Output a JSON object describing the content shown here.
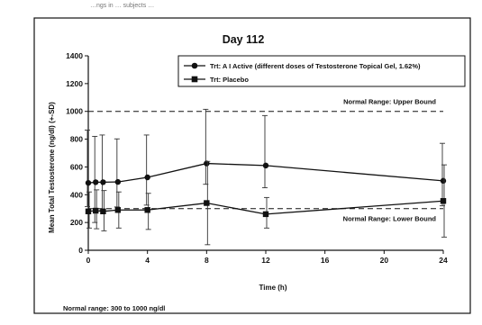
{
  "chart_data": {
    "type": "line",
    "title": "Day 112",
    "xlabel": "Time (h)",
    "ylabel": "Mean Total Testosterone (ng/dl) (+-SD)",
    "xlim": [
      0,
      24
    ],
    "ylim": [
      0,
      1400
    ],
    "x_ticks": [
      0,
      4,
      8,
      12,
      16,
      20,
      24
    ],
    "y_ticks": [
      0,
      200,
      400,
      600,
      800,
      1000,
      1200,
      1400
    ],
    "x_tick_labels": [
      "0",
      "4",
      "8",
      "12",
      "16",
      "20",
      "24"
    ],
    "y_tick_labels": [
      "0",
      "200",
      "400",
      "600",
      "800",
      "1000",
      "1200",
      "1400"
    ],
    "grid": false,
    "legend_position": "top-right",
    "series": [
      {
        "name": "Trt: A I Active (different doses of Testosterone Topical Gel, 1.62%)",
        "marker": "circle",
        "x": [
          0,
          0.5,
          1,
          2,
          4,
          8,
          12,
          24
        ],
        "y": [
          485,
          490,
          490,
          492,
          525,
          625,
          610,
          500
        ],
        "err_low": [
          170,
          290,
          200,
          180,
          200,
          150,
          160,
          180
        ],
        "err_high": [
          380,
          330,
          340,
          310,
          305,
          390,
          360,
          270
        ]
      },
      {
        "name": "Trt: Placebo",
        "marker": "square",
        "x": [
          0,
          0.5,
          1,
          2,
          4,
          8,
          12,
          24
        ],
        "y": [
          280,
          285,
          280,
          290,
          290,
          340,
          260,
          355
        ],
        "err_low": [
          120,
          130,
          140,
          130,
          140,
          300,
          100,
          260
        ],
        "err_high": [
          140,
          150,
          150,
          130,
          120,
          300,
          120,
          260
        ]
      }
    ],
    "reference_lines": [
      {
        "y": 1000,
        "label": "Normal Range: Upper Bound"
      },
      {
        "y": 300,
        "label": "Normal Range: Lower Bound"
      }
    ],
    "footnote": "Normal range: 300 to 1000 ng/dl"
  },
  "top_stub_text": "…ngs in … subjects …"
}
